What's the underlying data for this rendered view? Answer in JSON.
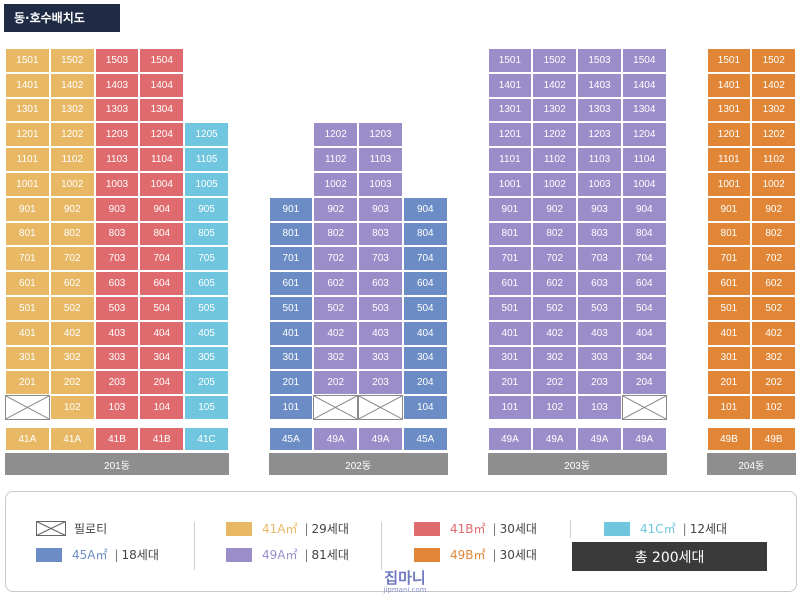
{
  "title": "동·호수배치도",
  "colors": {
    "41A": "#e8b864",
    "41B": "#e06b6e",
    "41C": "#6fc6de",
    "45A": "#6b8cc4",
    "49A": "#9a8dc9",
    "49B": "#e08636",
    "pilotis_border": "#8a8a8a",
    "label_bg": "#8e8e8e",
    "total_bg": "#3a3a3a",
    "badge_bg": "#1f2a44"
  },
  "buildings": [
    {
      "name": "201동",
      "columns": [
        {
          "type": "41A",
          "units": [
            "1501",
            "1401",
            "1301",
            "1201",
            "1101",
            "1001",
            "901",
            "801",
            "701",
            "601",
            "501",
            "401",
            "301",
            "201",
            "pilotis"
          ]
        },
        {
          "type": "41A",
          "units": [
            "1502",
            "1402",
            "1302",
            "1202",
            "1102",
            "1002",
            "902",
            "802",
            "702",
            "602",
            "502",
            "402",
            "302",
            "202",
            "102"
          ]
        },
        {
          "type": "41B",
          "units": [
            "1503",
            "1403",
            "1303",
            "1203",
            "1103",
            "1003",
            "903",
            "803",
            "703",
            "603",
            "503",
            "403",
            "303",
            "203",
            "103"
          ]
        },
        {
          "type": "41B",
          "units": [
            "1504",
            "1404",
            "1304",
            "1204",
            "1104",
            "1004",
            "904",
            "804",
            "704",
            "604",
            "504",
            "404",
            "304",
            "204",
            "104"
          ]
        },
        {
          "type": "41C",
          "units": [
            "1205",
            "1105",
            "1005",
            "905",
            "805",
            "705",
            "605",
            "505",
            "405",
            "305",
            "205",
            "105"
          ]
        }
      ]
    },
    {
      "name": "202동",
      "columns": [
        {
          "type": "45A",
          "units": [
            "901",
            "801",
            "701",
            "601",
            "501",
            "401",
            "301",
            "201",
            "101"
          ]
        },
        {
          "type": "49A",
          "units": [
            "1202",
            "1102",
            "1002",
            "902",
            "802",
            "702",
            "602",
            "502",
            "402",
            "302",
            "202",
            "pilotis"
          ]
        },
        {
          "type": "49A",
          "units": [
            "1203",
            "1103",
            "1003",
            "903",
            "803",
            "703",
            "603",
            "503",
            "403",
            "303",
            "203",
            "pilotis"
          ]
        },
        {
          "type": "45A",
          "units": [
            "904",
            "804",
            "704",
            "604",
            "504",
            "404",
            "304",
            "204",
            "104"
          ]
        }
      ]
    },
    {
      "name": "203동",
      "columns": [
        {
          "type": "49A",
          "units": [
            "1501",
            "1401",
            "1301",
            "1201",
            "1101",
            "1001",
            "901",
            "801",
            "701",
            "601",
            "501",
            "401",
            "301",
            "201",
            "101"
          ]
        },
        {
          "type": "49A",
          "units": [
            "1502",
            "1402",
            "1302",
            "1202",
            "1102",
            "1002",
            "902",
            "802",
            "702",
            "602",
            "502",
            "402",
            "302",
            "202",
            "102"
          ]
        },
        {
          "type": "49A",
          "units": [
            "1503",
            "1403",
            "1303",
            "1203",
            "1103",
            "1003",
            "903",
            "803",
            "703",
            "603",
            "503",
            "403",
            "303",
            "203",
            "103"
          ]
        },
        {
          "type": "49A",
          "units": [
            "1504",
            "1404",
            "1304",
            "1204",
            "1104",
            "1004",
            "904",
            "804",
            "704",
            "604",
            "504",
            "404",
            "304",
            "204",
            "pilotis"
          ]
        }
      ]
    },
    {
      "name": "204동",
      "columns": [
        {
          "type": "49B",
          "units": [
            "1501",
            "1401",
            "1301",
            "1201",
            "1101",
            "1001",
            "901",
            "801",
            "701",
            "601",
            "501",
            "401",
            "301",
            "201",
            "101"
          ]
        },
        {
          "type": "49B",
          "units": [
            "1502",
            "1402",
            "1302",
            "1202",
            "1102",
            "1002",
            "902",
            "802",
            "702",
            "602",
            "502",
            "402",
            "302",
            "202",
            "102"
          ]
        }
      ]
    }
  ],
  "legend": {
    "pilotis_label": "필로티",
    "items": [
      {
        "type": "41A㎡",
        "count": "29세대",
        "color_key": "41A"
      },
      {
        "type": "41B㎡",
        "count": "30세대",
        "color_key": "41B"
      },
      {
        "type": "41C㎡",
        "count": "12세대",
        "color_key": "41C"
      },
      {
        "type": "45A㎡",
        "count": "18세대",
        "color_key": "45A"
      },
      {
        "type": "49A㎡",
        "count": "81세대",
        "color_key": "49A"
      },
      {
        "type": "49B㎡",
        "count": "30세대",
        "color_key": "49B"
      }
    ],
    "separator": "|",
    "total": "총 200세대"
  },
  "watermark": {
    "main": "집마니",
    "sub": "jipmani.com"
  }
}
